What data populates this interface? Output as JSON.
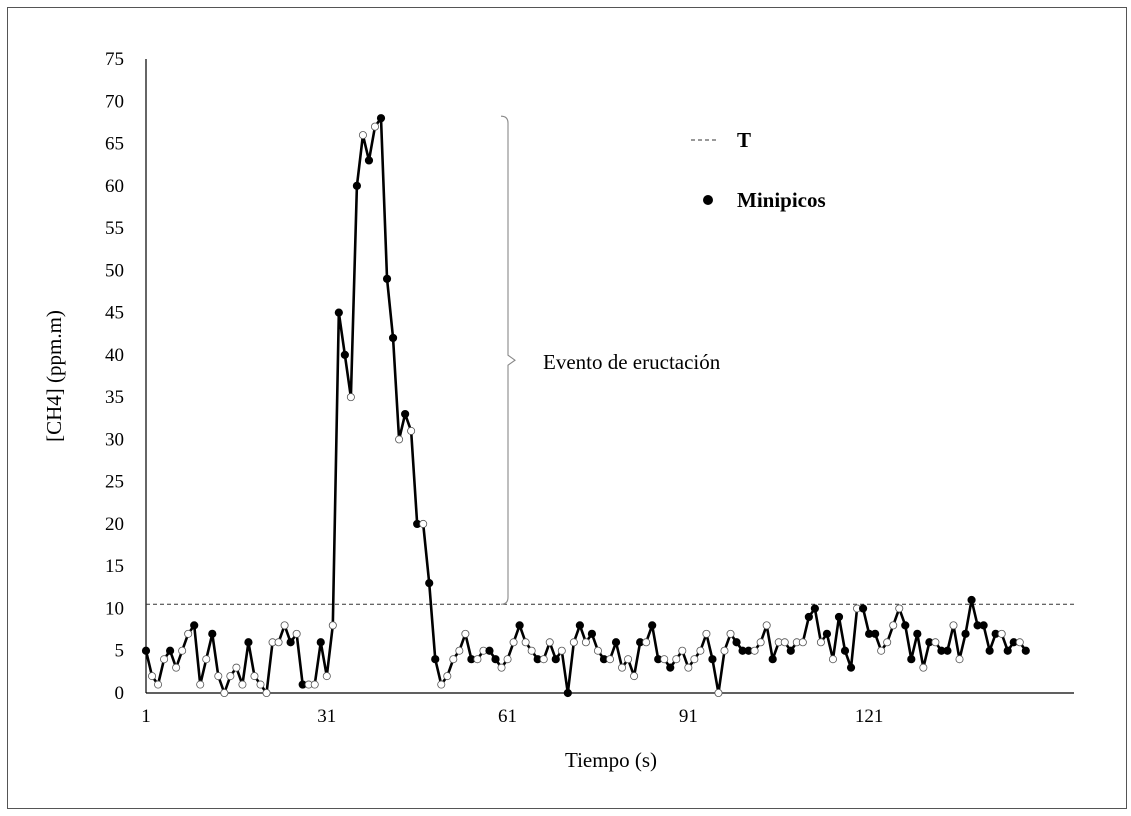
{
  "chart_data": {
    "type": "line",
    "xlabel": "Tiempo (s)",
    "ylabel": "[CH4] (ppm.m)",
    "xlim": [
      1,
      155
    ],
    "ylim": [
      0,
      75
    ],
    "x_ticks": [
      1,
      31,
      61,
      91,
      121
    ],
    "y_ticks": [
      0,
      5,
      10,
      15,
      20,
      25,
      30,
      35,
      40,
      45,
      50,
      55,
      60,
      65,
      70,
      75
    ],
    "grid": false,
    "legend_position": "top-right",
    "threshold": {
      "name": "T",
      "value": 10.5
    },
    "annotation": {
      "text": "Evento de eructación",
      "y_range": [
        10.5,
        68
      ]
    },
    "series": [
      {
        "name": "[CH4]",
        "x_start": 1,
        "x_step": 1,
        "values": [
          5,
          2,
          1,
          4,
          5,
          3,
          5,
          7,
          8,
          1,
          4,
          7,
          2,
          0,
          2,
          3,
          1,
          6,
          2,
          1,
          0,
          6,
          6,
          8,
          6,
          7,
          1,
          1,
          1,
          6,
          2,
          8,
          45,
          40,
          35,
          60,
          66,
          63,
          67,
          68,
          49,
          42,
          30,
          33,
          31,
          20,
          20,
          13,
          4,
          1,
          2,
          4,
          5,
          7,
          4,
          4,
          5,
          5,
          4,
          3,
          4,
          6,
          8,
          6,
          5,
          4,
          4,
          6,
          4,
          5,
          0,
          6,
          8,
          6,
          7,
          5,
          4,
          4,
          6,
          3,
          4,
          2,
          6,
          6,
          8,
          4,
          4,
          3,
          4,
          5,
          3,
          4,
          5,
          7,
          4,
          0,
          5,
          7,
          6,
          5,
          5,
          5,
          6,
          8,
          4,
          6,
          6,
          5,
          6,
          6,
          9,
          10,
          6,
          7,
          4,
          9,
          5,
          3,
          10,
          10,
          7,
          7,
          5,
          6,
          8,
          10,
          8,
          4,
          7,
          3,
          6,
          6,
          5,
          5,
          8,
          4,
          7,
          11,
          8,
          8,
          5,
          7,
          7,
          5,
          6,
          6,
          5
        ],
        "minipico_indices": [
          0,
          4,
          8,
          11,
          17,
          24,
          26,
          29,
          32,
          33,
          35,
          37,
          39,
          40,
          41,
          43,
          45,
          47,
          48,
          54,
          57,
          58,
          62,
          65,
          68,
          70,
          72,
          74,
          76,
          78,
          82,
          84,
          85,
          87,
          94,
          98,
          99,
          100,
          104,
          107,
          110,
          111,
          113,
          115,
          116,
          117,
          119,
          120,
          121,
          126,
          127,
          128,
          130,
          132,
          133,
          136,
          137,
          138,
          139,
          140,
          141,
          143,
          144,
          146,
          147
        ]
      }
    ],
    "legend": [
      {
        "label": "T",
        "style": "dashed-line"
      },
      {
        "label": "Minipicos",
        "style": "filled-dot"
      }
    ]
  }
}
